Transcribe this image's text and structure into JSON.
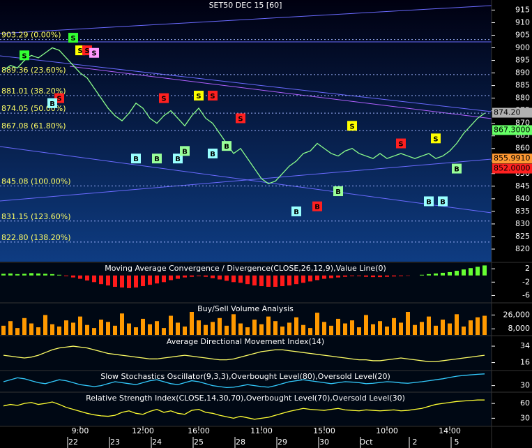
{
  "chart_data": [
    {
      "type": "line",
      "title": "SET50 DEC 15  [60]",
      "categories": [
        null,
        null,
        null,
        null,
        null,
        null,
        null,
        null,
        null,
        null,
        null,
        "9:00",
        null,
        null,
        null,
        null,
        null,
        null,
        null,
        null,
        "12:00",
        null,
        null,
        null,
        null,
        null,
        null,
        null,
        "16:00",
        null,
        null,
        null,
        null,
        null,
        null,
        null,
        null,
        "11:00",
        null,
        null,
        null,
        null,
        null,
        null,
        null,
        null,
        "15:00",
        null,
        null,
        null,
        null,
        null,
        null,
        null,
        null,
        "10:00",
        null,
        null,
        null,
        null,
        null,
        null,
        null,
        null,
        "14:00",
        null,
        null,
        null,
        null,
        null
      ],
      "dates": [
        null,
        null,
        null,
        null,
        null,
        null,
        null,
        null,
        null,
        null,
        "22",
        null,
        null,
        null,
        null,
        null,
        "23",
        null,
        null,
        null,
        null,
        null,
        "24",
        null,
        null,
        null,
        null,
        null,
        "25",
        null,
        null,
        null,
        null,
        null,
        "28",
        null,
        null,
        null,
        null,
        null,
        "29",
        null,
        null,
        null,
        null,
        null,
        "30",
        null,
        null,
        null,
        null,
        null,
        "Oct",
        null,
        null,
        null,
        null,
        null,
        null,
        "2",
        null,
        null,
        null,
        null,
        null,
        "5",
        null,
        null,
        null,
        null
      ],
      "series": [
        {
          "color": "#8cff8c",
          "values": [
            891,
            893,
            892,
            895,
            897,
            896,
            898,
            900,
            899,
            896,
            893,
            890,
            888,
            884,
            880,
            876,
            873,
            871,
            874,
            878,
            876,
            872,
            870,
            873,
            875,
            872,
            869,
            873,
            876,
            872,
            870,
            866,
            862,
            858,
            860,
            856,
            852,
            848,
            846,
            847,
            850,
            853,
            855,
            858,
            859,
            862,
            860,
            858,
            857,
            859,
            860,
            858,
            857,
            856,
            858,
            856,
            857,
            858,
            857,
            856,
            857,
            858,
            856,
            857,
            859,
            862,
            866,
            869,
            872,
            874
          ]
        }
      ],
      "ylim": [
        815,
        919
      ],
      "yticks": [
        915,
        910,
        905,
        900,
        895,
        890,
        885,
        880,
        875,
        870,
        865,
        860,
        855,
        850,
        845,
        840,
        835,
        830,
        825,
        820
      ],
      "levels": [
        {
          "value": 903.29,
          "label": "903.29 (0.00%)"
        },
        {
          "value": 889.36,
          "label": "889.36 (23.60%)"
        },
        {
          "value": 881.01,
          "label": "881.01 (38.20%)"
        },
        {
          "value": 874.05,
          "label": "874.05 (50.00%)"
        },
        {
          "value": 867.08,
          "label": "867.08 (61.80%)"
        },
        {
          "value": 845.08,
          "label": "845.08 (100.00%)"
        },
        {
          "value": 831.15,
          "label": "831.15 (123.60%)"
        },
        {
          "value": 822.8,
          "label": "822.80 (138.20%)"
        }
      ],
      "price_tags": [
        {
          "value": 874.2,
          "label": "874.20",
          "color": "#b0b0b0"
        },
        {
          "value": 867.3,
          "label": "867.3000",
          "color": "#66ff66"
        },
        {
          "value": 855.991,
          "label": "855.9910",
          "color": "#ff9933"
        },
        {
          "value": 852,
          "label": "852.0000",
          "color": "#ff2020"
        }
      ],
      "signals": [
        {
          "label": "S",
          "index": 10,
          "value": 904,
          "color": "#33ff33"
        },
        {
          "label": "S",
          "index": 3,
          "value": 897,
          "color": "#33ff33"
        },
        {
          "label": "S",
          "index": 11,
          "value": 899,
          "color": "#ffff00"
        },
        {
          "label": "S",
          "index": 12,
          "value": 899,
          "color": "#ff2020"
        },
        {
          "label": "S",
          "index": 13,
          "value": 898,
          "color": "#ff99ff"
        },
        {
          "label": "S",
          "index": 8,
          "value": 880,
          "color": "#ff2020"
        },
        {
          "label": "S",
          "index": 23,
          "value": 880,
          "color": "#ff2020"
        },
        {
          "label": "S",
          "index": 28,
          "value": 881,
          "color": "#ffff00"
        },
        {
          "label": "S",
          "index": 30,
          "value": 881,
          "color": "#ff2020"
        },
        {
          "label": "S",
          "index": 34,
          "value": 872,
          "color": "#ff2020"
        },
        {
          "label": "S",
          "index": 50,
          "value": 869,
          "color": "#ffff00"
        },
        {
          "label": "S",
          "index": 57,
          "value": 862,
          "color": "#ff2020"
        },
        {
          "label": "S",
          "index": 62,
          "value": 864,
          "color": "#ffff00"
        },
        {
          "label": "B",
          "index": 7,
          "value": 878,
          "color": "#99ffff"
        },
        {
          "label": "B",
          "index": 19,
          "value": 856,
          "color": "#99ffff"
        },
        {
          "label": "B",
          "index": 22,
          "value": 856,
          "color": "#99ff99"
        },
        {
          "label": "B",
          "index": 25,
          "value": 856,
          "color": "#99ffff"
        },
        {
          "label": "B",
          "index": 26,
          "value": 859,
          "color": "#99ff99"
        },
        {
          "label": "B",
          "index": 30,
          "value": 858,
          "color": "#99ffff"
        },
        {
          "label": "B",
          "index": 32,
          "value": 861,
          "color": "#99ff99"
        },
        {
          "label": "B",
          "index": 42,
          "value": 835,
          "color": "#99ffff"
        },
        {
          "label": "B",
          "index": 45,
          "value": 837,
          "color": "#ff2020"
        },
        {
          "label": "B",
          "index": 48,
          "value": 843,
          "color": "#99ff99"
        },
        {
          "label": "B",
          "index": 61,
          "value": 839,
          "color": "#99ffff"
        },
        {
          "label": "B",
          "index": 63,
          "value": 839,
          "color": "#99ffff"
        },
        {
          "label": "B",
          "index": 65,
          "value": 852,
          "color": "#99ff99"
        }
      ]
    },
    {
      "type": "bar",
      "title": "Moving Average Convergence / Divergence(CLOSE,26,12,9),Value Line(0)",
      "values": [
        0.5,
        0.6,
        0.4,
        0.5,
        0.7,
        0.6,
        0.5,
        0.4,
        0.2,
        -0.2,
        -0.6,
        -1,
        -1.5,
        -2,
        -2.6,
        -3,
        -3.4,
        -3.6,
        -3.8,
        -3.6,
        -3.2,
        -2.8,
        -2.4,
        -2,
        -1.4,
        -1,
        -0.6,
        -0.4,
        -0.2,
        -0.4,
        -0.8,
        -1.2,
        -1.6,
        -2,
        -2.2,
        -2.6,
        -3,
        -3.2,
        -3.4,
        -3.4,
        -3.2,
        -3,
        -2.6,
        -2.2,
        -1.8,
        -1.4,
        -1,
        -0.8,
        -0.6,
        -0.4,
        -0.2,
        -0.2,
        -0.4,
        -0.5,
        -0.5,
        -0.4,
        -0.3,
        -0.2,
        -0.1,
        0,
        0.2,
        0.4,
        0.6,
        0.8,
        1,
        1.4,
        1.8,
        2.2,
        2.6,
        3
      ],
      "colors": [
        "#66ff33",
        "#ff1a1a"
      ],
      "ylim": [
        -8,
        3.5
      ],
      "yticks": [
        2,
        -2,
        -6
      ]
    },
    {
      "type": "bar",
      "title": "Buy/Sell Volume Analysis",
      "values": [
        12000,
        18000,
        9000,
        22000,
        15000,
        10000,
        26000,
        14000,
        11000,
        19000,
        16000,
        24000,
        13000,
        9000,
        20000,
        17000,
        12000,
        28000,
        15000,
        10000,
        21000,
        14000,
        18000,
        9000,
        25000,
        16000,
        11000,
        30000,
        19000,
        13000,
        17000,
        22000,
        12000,
        27000,
        15000,
        10000,
        20000,
        14000,
        24000,
        18000,
        11000,
        16000,
        23000,
        13000,
        9000,
        29000,
        17000,
        12000,
        21000,
        15000,
        19000,
        10000,
        26000,
        14000,
        18000,
        11000,
        22000,
        16000,
        30000,
        13000,
        17000,
        24000,
        12000,
        20000,
        15000,
        27000,
        11000,
        19000,
        23000,
        25000
      ],
      "colors": [
        "#ff9900"
      ],
      "ylim": [
        0,
        40000
      ],
      "yticks": [
        {
          "value": 26000,
          "label": "26,000"
        },
        {
          "value": 8000,
          "label": "8,000"
        }
      ]
    },
    {
      "type": "line",
      "title": "Average Directional Movement Index(14)",
      "series": [
        {
          "color": "#ffff66",
          "values": [
            24,
            23,
            22,
            21,
            22,
            24,
            27,
            30,
            32,
            33,
            34,
            33,
            32,
            30,
            28,
            26,
            25,
            24,
            23,
            22,
            21,
            20,
            20,
            21,
            22,
            23,
            24,
            23,
            22,
            21,
            20,
            19,
            19,
            20,
            22,
            24,
            26,
            28,
            29,
            30,
            30,
            29,
            28,
            27,
            26,
            25,
            24,
            23,
            22,
            21,
            20,
            19,
            19,
            18,
            18,
            19,
            20,
            21,
            20,
            19,
            18,
            17,
            17,
            18,
            19,
            20,
            21,
            22,
            23,
            24
          ]
        }
      ],
      "ylim": [
        8,
        44
      ],
      "yticks": [
        34,
        16
      ]
    },
    {
      "type": "line",
      "title": "Slow Stochastics Oscillator(9,3,3),Overbought Level(80),Oversold Level(20)",
      "series": [
        {
          "color": "#33ccff",
          "values": [
            50,
            60,
            70,
            65,
            55,
            45,
            40,
            50,
            60,
            55,
            45,
            35,
            30,
            25,
            30,
            40,
            50,
            45,
            40,
            35,
            45,
            55,
            60,
            50,
            40,
            35,
            45,
            55,
            50,
            40,
            30,
            25,
            20,
            22,
            28,
            35,
            30,
            25,
            22,
            30,
            40,
            50,
            55,
            60,
            55,
            50,
            45,
            40,
            45,
            50,
            48,
            45,
            40,
            42,
            46,
            50,
            48,
            44,
            42,
            46,
            50,
            55,
            60,
            65,
            72,
            78,
            82,
            85,
            88,
            90
          ]
        }
      ],
      "ylim": [
        0,
        100
      ],
      "yticks": [
        30
      ]
    },
    {
      "type": "line",
      "title": "Relative Strength Index(CLOSE,14,30,70),Overbought Level(70),Oversold Level(30)",
      "series": [
        {
          "color": "#ffff33",
          "values": [
            55,
            58,
            56,
            60,
            62,
            58,
            60,
            63,
            58,
            52,
            48,
            44,
            40,
            37,
            35,
            34,
            36,
            42,
            45,
            40,
            38,
            44,
            48,
            42,
            45,
            40,
            38,
            46,
            48,
            42,
            40,
            36,
            33,
            30,
            34,
            31,
            28,
            30,
            32,
            36,
            40,
            44,
            47,
            50,
            48,
            47,
            46,
            48,
            50,
            47,
            46,
            45,
            47,
            46,
            45,
            46,
            47,
            45,
            46,
            48,
            50,
            54,
            58,
            60,
            62,
            64,
            65,
            66,
            67,
            67
          ]
        }
      ],
      "ylim": [
        15,
        80
      ],
      "yticks": [
        60,
        30
      ]
    }
  ]
}
